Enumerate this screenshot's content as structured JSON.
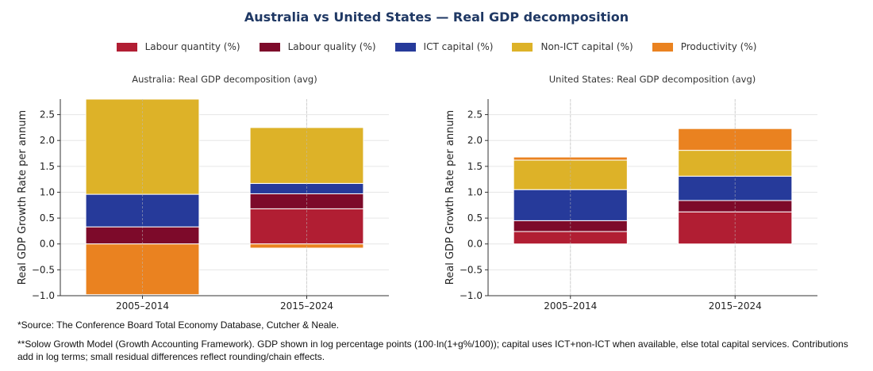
{
  "title": "Australia vs United States — Real GDP decomposition",
  "colors": {
    "Labour quantity (%)": "#b11e33",
    "Labour quality (%)": "#7d0a2a",
    "ICT capital (%)": "#263a9a",
    "Non-ICT capital (%)": "#ddb228",
    "Productivity (%)": "#ea8220"
  },
  "legend": [
    "Labour quantity (%)",
    "Labour quality (%)",
    "ICT capital (%)",
    "Non-ICT capital (%)",
    "Productivity (%)"
  ],
  "chart_data": [
    {
      "type": "bar",
      "stacked": true,
      "title": "Australia: Real GDP decomposition (avg)",
      "ylabel": "Real GDP Growth Rate per annum",
      "ylim": [
        -1.0,
        2.8
      ],
      "yticks": [
        -1.0,
        -0.5,
        0.0,
        0.5,
        1.0,
        1.5,
        2.0,
        2.5
      ],
      "ytick_labels": [
        "−1.0",
        "−0.5",
        "0.0",
        "0.5",
        "1.0",
        "1.5",
        "2.0",
        "2.5"
      ],
      "categories": [
        "2005–2014",
        "2015–2024"
      ],
      "series": [
        {
          "name": "Labour quantity (%)",
          "values": [
            0.0,
            0.68
          ]
        },
        {
          "name": "Labour quality (%)",
          "values": [
            0.33,
            0.29
          ]
        },
        {
          "name": "ICT capital (%)",
          "values": [
            0.63,
            0.2
          ]
        },
        {
          "name": "Non-ICT capital (%)",
          "values": [
            1.84,
            1.08
          ]
        },
        {
          "name": "Productivity (%)",
          "values": [
            -0.98,
            -0.08
          ]
        }
      ]
    },
    {
      "type": "bar",
      "stacked": true,
      "title": "United States: Real GDP decomposition (avg)",
      "ylabel": "Real GDP Growth Rate per annum",
      "ylim": [
        -1.0,
        2.8
      ],
      "yticks": [
        -1.0,
        -0.5,
        0.0,
        0.5,
        1.0,
        1.5,
        2.0,
        2.5
      ],
      "ytick_labels": [
        "−1.0",
        "−0.5",
        "0.0",
        "0.5",
        "1.0",
        "1.5",
        "2.0",
        "2.5"
      ],
      "categories": [
        "2005–2014",
        "2015–2024"
      ],
      "series": [
        {
          "name": "Labour quantity (%)",
          "values": [
            0.24,
            0.62
          ]
        },
        {
          "name": "Labour quality (%)",
          "values": [
            0.21,
            0.22
          ]
        },
        {
          "name": "ICT capital (%)",
          "values": [
            0.6,
            0.47
          ]
        },
        {
          "name": "Non-ICT capital (%)",
          "values": [
            0.57,
            0.5
          ]
        },
        {
          "name": "Productivity (%)",
          "values": [
            0.06,
            0.42
          ]
        }
      ]
    }
  ],
  "notes": {
    "source": "*Source: The Conference Board Total Economy Database, Cutcher & Neale.",
    "method": "**Solow Growth Model (Growth Accounting Framework). GDP shown in log percentage points (100·ln(1+g%/100)); capital uses ICT+non-ICT when available, else total capital services. Contributions add in log terms; small residual differences reflect rounding/chain effects."
  }
}
